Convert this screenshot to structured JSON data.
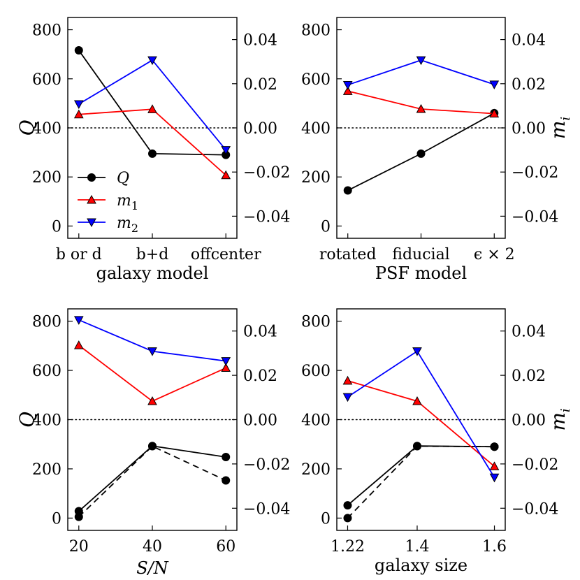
{
  "chart_data": [
    {
      "type": "line",
      "xlabel": "galaxy model",
      "ylabel": "Q",
      "ylabel_right": "",
      "categorical": true,
      "categories": [
        "b or d",
        "b+d",
        "offcenter"
      ],
      "x": [
        0,
        1,
        2
      ],
      "xlim": [
        -0.15,
        2.15
      ],
      "ylim": [
        -50,
        850
      ],
      "yticks": [
        0,
        200,
        400,
        600,
        800
      ],
      "y2lim": [
        -0.05,
        0.05
      ],
      "y2ticks": [
        "0.04",
        "0.02",
        "0.00",
        "−0.02",
        "−0.04"
      ],
      "y2tick_values": [
        0.04,
        0.02,
        0.0,
        -0.02,
        -0.04
      ],
      "reference_line": 400,
      "legend": {
        "placement": "lower-left",
        "entries": [
          "Q",
          "m1",
          "m2"
        ],
        "labels": {
          "base": [
            "Q",
            "m",
            "m"
          ],
          "sub": [
            "",
            "1",
            "2"
          ]
        }
      },
      "series": [
        {
          "name": "Q",
          "axis": "left",
          "color": "#000000",
          "marker": "circle",
          "style": "solid",
          "values": [
            716,
            295,
            290
          ]
        },
        {
          "name": "m1",
          "axis": "left",
          "color": "#ff0000",
          "marker": "triangle-up",
          "style": "solid",
          "values": [
            455,
            476,
            207
          ]
        },
        {
          "name": "m2",
          "axis": "left",
          "color": "#0000ff",
          "marker": "triangle-down",
          "style": "solid",
          "values": [
            497,
            676,
            310
          ]
        }
      ]
    },
    {
      "type": "line",
      "xlabel": "PSF model",
      "ylabel": "",
      "ylabel_right": "m_i",
      "categorical": true,
      "categories": [
        "rotated",
        "fiducial",
        "ϵ × 2"
      ],
      "x": [
        0,
        1,
        2
      ],
      "xlim": [
        -0.15,
        2.15
      ],
      "ylim": [
        -50,
        850
      ],
      "yticks": [
        0,
        200,
        400,
        600,
        800
      ],
      "y2lim": [
        -0.05,
        0.05
      ],
      "y2ticks": [
        "0.04",
        "0.02",
        "0.00",
        "−0.02",
        "−0.04"
      ],
      "y2tick_values": [
        0.04,
        0.02,
        0.0,
        -0.02,
        -0.04
      ],
      "reference_line": 400,
      "series": [
        {
          "name": "Q",
          "axis": "left",
          "color": "#000000",
          "marker": "circle",
          "style": "solid",
          "values": [
            145,
            295,
            460
          ]
        },
        {
          "name": "m1",
          "axis": "left",
          "color": "#ff0000",
          "marker": "triangle-up",
          "style": "solid",
          "values": [
            550,
            477,
            458
          ]
        },
        {
          "name": "m2",
          "axis": "left",
          "color": "#0000ff",
          "marker": "triangle-down",
          "style": "solid",
          "values": [
            575,
            676,
            577
          ]
        }
      ]
    },
    {
      "type": "line",
      "xlabel": "S/N",
      "ylabel": "Q",
      "ylabel_right": "",
      "categorical": false,
      "categories": [
        "20",
        "40",
        "60"
      ],
      "x": [
        20,
        40,
        60
      ],
      "xlim": [
        17,
        63
      ],
      "ylim": [
        -50,
        850
      ],
      "yticks": [
        0,
        200,
        400,
        600,
        800
      ],
      "y2lim": [
        -0.05,
        0.05
      ],
      "y2ticks": [
        "0.04",
        "0.02",
        "0.00",
        "−0.02",
        "−0.04"
      ],
      "y2tick_values": [
        0.04,
        0.02,
        0.0,
        -0.02,
        -0.04
      ],
      "reference_line": 400,
      "series": [
        {
          "name": "Q",
          "axis": "left",
          "color": "#000000",
          "marker": "circle",
          "style": "solid",
          "values": [
            28,
            293,
            248
          ]
        },
        {
          "name": "Q (dashed)",
          "axis": "left",
          "color": "#000000",
          "marker": "circle",
          "style": "dashed",
          "values": [
            5,
            292,
            153
          ]
        },
        {
          "name": "m1",
          "axis": "left",
          "color": "#ff0000",
          "marker": "triangle-up",
          "style": "solid",
          "values": [
            702,
            475,
            610
          ]
        },
        {
          "name": "m2",
          "axis": "left",
          "color": "#0000ff",
          "marker": "triangle-down",
          "style": "solid",
          "values": [
            805,
            678,
            638
          ]
        }
      ]
    },
    {
      "type": "line",
      "xlabel": "galaxy size",
      "ylabel": "",
      "ylabel_right": "m_i",
      "categorical": false,
      "categories": [
        "1.22",
        "1.4",
        "1.6"
      ],
      "x": [
        1.22,
        1.4,
        1.6
      ],
      "xlim": [
        1.192,
        1.628
      ],
      "ylim": [
        -50,
        850
      ],
      "yticks": [
        0,
        200,
        400,
        600,
        800
      ],
      "y2lim": [
        -0.05,
        0.05
      ],
      "y2ticks": [
        "0.04",
        "0.02",
        "0.00",
        "−0.02",
        "−0.04"
      ],
      "y2tick_values": [
        0.04,
        0.02,
        0.0,
        -0.02,
        -0.04
      ],
      "reference_line": 400,
      "series": [
        {
          "name": "Q",
          "axis": "left",
          "color": "#000000",
          "marker": "circle",
          "style": "solid",
          "values": [
            52,
            293,
            290
          ]
        },
        {
          "name": "Q (dashed)",
          "axis": "left",
          "color": "#000000",
          "marker": "circle",
          "style": "dashed",
          "values": [
            0,
            292,
            290
          ]
        },
        {
          "name": "m1",
          "axis": "left",
          "color": "#ff0000",
          "marker": "triangle-up",
          "style": "solid",
          "values": [
            558,
            475,
            210
          ]
        },
        {
          "name": "m2",
          "axis": "left",
          "color": "#0000ff",
          "marker": "triangle-down",
          "style": "solid",
          "values": [
            492,
            678,
            165
          ]
        }
      ]
    }
  ]
}
